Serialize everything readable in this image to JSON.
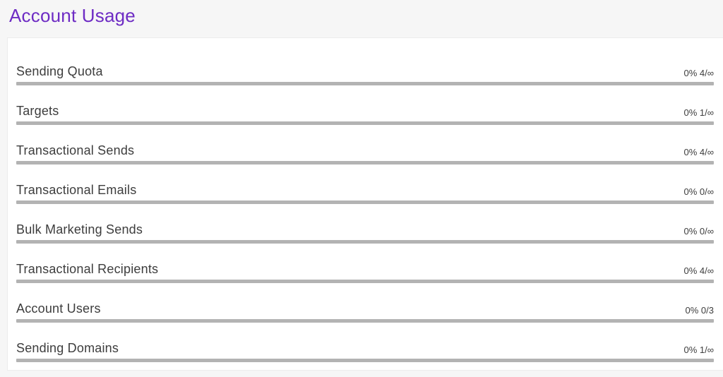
{
  "page": {
    "title": "Account Usage"
  },
  "usage": {
    "rows": [
      {
        "label": "Sending Quota",
        "value": "0% 4/∞",
        "percent": 0
      },
      {
        "label": "Targets",
        "value": "0% 1/∞",
        "percent": 0
      },
      {
        "label": "Transactional Sends",
        "value": "0% 4/∞",
        "percent": 0
      },
      {
        "label": "Transactional Emails",
        "value": "0% 0/∞",
        "percent": 0
      },
      {
        "label": "Bulk Marketing Sends",
        "value": "0% 0/∞",
        "percent": 0
      },
      {
        "label": "Transactional Recipients",
        "value": "0% 4/∞",
        "percent": 0
      },
      {
        "label": "Account Users",
        "value": "0% 0/3",
        "percent": 0
      },
      {
        "label": "Sending Domains",
        "value": "0% 1/∞",
        "percent": 0
      }
    ]
  },
  "colors": {
    "title": "#6e2cc4",
    "text": "#3d3d3d",
    "bar_track": "#b3b3b3",
    "bar_fill": "#6e2cc4",
    "panel_bg": "#ffffff",
    "page_bg": "#f6f6f6"
  }
}
